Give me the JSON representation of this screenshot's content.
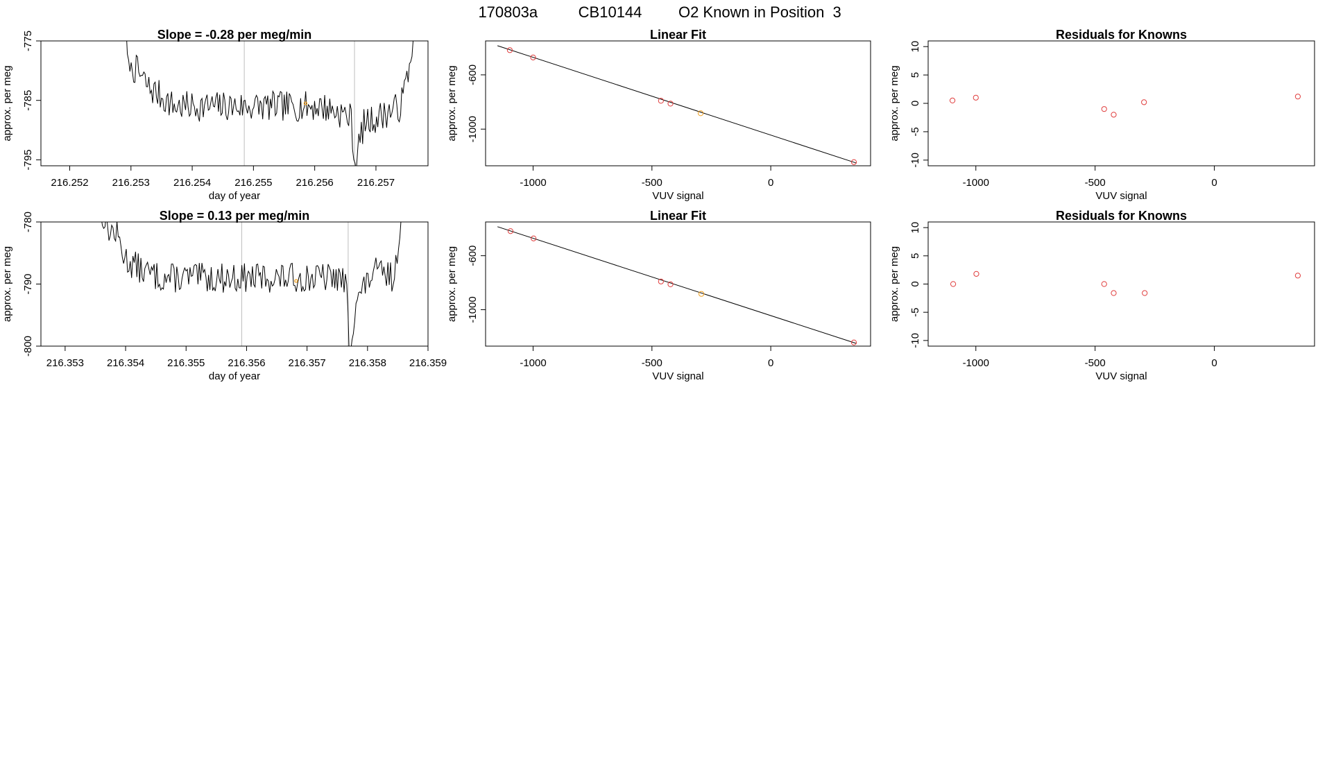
{
  "header": {
    "run_id": "170803a",
    "cylinder": "CB10144",
    "description": "O2 Known in Position  3"
  },
  "colors": {
    "points": "#e03c3c",
    "highlight": "#f0a020",
    "series": "#000000",
    "marker_lines": "#bdbdbd"
  },
  "chart_data": [
    {
      "id": "ts1",
      "type": "line",
      "title": "Slope =  -0.28  per meg/min",
      "xlabel": "day of year",
      "ylabel": "approx. per meg",
      "xlim": [
        216.25153,
        216.25785
      ],
      "ylim": [
        -796,
        -775
      ],
      "xticks": [
        216.252,
        216.253,
        216.254,
        216.255,
        216.256,
        216.257
      ],
      "xtick_labels": [
        "216.252",
        "216.253",
        "216.254",
        "216.255",
        "216.256",
        "216.257"
      ],
      "yticks": [
        -775,
        -785,
        -795
      ],
      "ytick_labels": [
        "-775",
        "-785",
        "-795"
      ],
      "vlines": [
        216.25485,
        216.25665
      ],
      "highlight": {
        "x": 216.25585,
        "y": -785.5
      },
      "series": {
        "start": 216.2529,
        "end": 216.25765,
        "baseline": -786,
        "noise": 1.6,
        "seed": 7,
        "anchors": [
          [
            216.2529,
            -770
          ],
          [
            216.25295,
            -779
          ],
          [
            216.2531,
            -780
          ],
          [
            216.2533,
            -783
          ],
          [
            216.25345,
            -784
          ],
          [
            216.2537,
            -786
          ],
          [
            216.255,
            -786
          ],
          [
            216.2561,
            -786
          ],
          [
            216.2564,
            -787
          ],
          [
            216.2566,
            -788
          ],
          [
            216.25665,
            -796
          ],
          [
            216.2568,
            -789
          ],
          [
            216.2574,
            -786
          ],
          [
            216.25745,
            -784
          ],
          [
            216.25755,
            -779
          ],
          [
            216.25765,
            -773
          ]
        ]
      }
    },
    {
      "id": "fit1",
      "type": "scatter",
      "title": "Linear Fit",
      "xlabel": "VUV signal",
      "ylabel": "approx. per meg",
      "xlim": [
        -1200,
        420
      ],
      "ylim": [
        -1270,
        -350
      ],
      "xticks": [
        -1000,
        -500,
        0
      ],
      "xtick_labels": [
        "-1000",
        "-500",
        "0"
      ],
      "yticks": [
        -1000,
        -600
      ],
      "ytick_labels": [
        "-1000",
        "-600"
      ],
      "line": {
        "x1": -1150,
        "y1": -385,
        "x2": 360,
        "y2": -1250
      },
      "points": [
        {
          "x": -1098,
          "y": -418,
          "kind": "known"
        },
        {
          "x": -1000,
          "y": -472,
          "kind": "known"
        },
        {
          "x": -462,
          "y": -791,
          "kind": "known"
        },
        {
          "x": -422,
          "y": -812,
          "kind": "known"
        },
        {
          "x": -295,
          "y": -883,
          "kind": "current"
        },
        {
          "x": 350,
          "y": -1243,
          "kind": "known"
        }
      ]
    },
    {
      "id": "res1",
      "type": "scatter",
      "title": "Residuals for Knowns",
      "xlabel": "VUV signal",
      "ylabel": "approx. per meg",
      "xlim": [
        -1200,
        420
      ],
      "ylim": [
        -11,
        11
      ],
      "xticks": [
        -1000,
        -500,
        0
      ],
      "xtick_labels": [
        "-1000",
        "-500",
        "0"
      ],
      "yticks": [
        -10,
        -5,
        0,
        5,
        10
      ],
      "ytick_labels": [
        "-10",
        "-5",
        "0",
        "5",
        "10"
      ],
      "points": [
        {
          "x": -1098,
          "y": 0.5,
          "kind": "known"
        },
        {
          "x": -1000,
          "y": 1.0,
          "kind": "known"
        },
        {
          "x": -462,
          "y": -1.0,
          "kind": "known"
        },
        {
          "x": -422,
          "y": -2.0,
          "kind": "known"
        },
        {
          "x": -295,
          "y": 0.2,
          "kind": "known"
        },
        {
          "x": 350,
          "y": 1.2,
          "kind": "known"
        }
      ]
    },
    {
      "id": "ts2",
      "type": "line",
      "title": "Slope =  0.13  per meg/min",
      "xlabel": "day of year",
      "ylabel": "approx. per meg",
      "xlim": [
        216.3526,
        216.359
      ],
      "ylim": [
        -800,
        -780
      ],
      "xticks": [
        216.353,
        216.354,
        216.355,
        216.356,
        216.357,
        216.358,
        216.359
      ],
      "xtick_labels": [
        "216.353",
        "216.354",
        "216.355",
        "216.356",
        "216.357",
        "216.358",
        "216.359"
      ],
      "yticks": [
        -780,
        -790,
        -800
      ],
      "ytick_labels": [
        "-780",
        "-790",
        "-800"
      ],
      "vlines": [
        216.35592,
        216.35768
      ],
      "highlight": {
        "x": 216.35682,
        "y": -789.5
      },
      "series": {
        "start": 216.35355,
        "end": 216.3586,
        "baseline": -789,
        "noise": 1.5,
        "seed": 13,
        "anchors": [
          [
            216.35355,
            -779
          ],
          [
            216.3537,
            -781
          ],
          [
            216.35385,
            -782
          ],
          [
            216.354,
            -786
          ],
          [
            216.3543,
            -788
          ],
          [
            216.3546,
            -789
          ],
          [
            216.3575,
            -789
          ],
          [
            216.35765,
            -790
          ],
          [
            216.3577,
            -801
          ],
          [
            216.3578,
            -793
          ],
          [
            216.3581,
            -788
          ],
          [
            216.35845,
            -789
          ],
          [
            216.3585,
            -785
          ],
          [
            216.35855,
            -780
          ],
          [
            216.3586,
            -776
          ]
        ]
      }
    },
    {
      "id": "fit2",
      "type": "scatter",
      "title": "Linear Fit",
      "xlabel": "VUV signal",
      "ylabel": "approx. per meg",
      "xlim": [
        -1200,
        420
      ],
      "ylim": [
        -1270,
        -350
      ],
      "xticks": [
        -1000,
        -500,
        0
      ],
      "xtick_labels": [
        "-1000",
        "-500",
        "0"
      ],
      "yticks": [
        -1000,
        -600
      ],
      "ytick_labels": [
        "-1000",
        "-600"
      ],
      "line": {
        "x1": -1150,
        "y1": -385,
        "x2": 360,
        "y2": -1250
      },
      "points": [
        {
          "x": -1095,
          "y": -418,
          "kind": "known"
        },
        {
          "x": -998,
          "y": -472,
          "kind": "known"
        },
        {
          "x": -462,
          "y": -791,
          "kind": "known"
        },
        {
          "x": -422,
          "y": -812,
          "kind": "known"
        },
        {
          "x": -292,
          "y": -883,
          "kind": "current"
        },
        {
          "x": 350,
          "y": -1243,
          "kind": "known"
        }
      ]
    },
    {
      "id": "res2",
      "type": "scatter",
      "title": "Residuals for Knowns",
      "xlabel": "VUV signal",
      "ylabel": "approx. per meg",
      "xlim": [
        -1200,
        420
      ],
      "ylim": [
        -11,
        11
      ],
      "xticks": [
        -1000,
        -500,
        0
      ],
      "xtick_labels": [
        "-1000",
        "-500",
        "0"
      ],
      "yticks": [
        -10,
        -5,
        0,
        5,
        10
      ],
      "ytick_labels": [
        "-10",
        "-5",
        "0",
        "5",
        "10"
      ],
      "points": [
        {
          "x": -1095,
          "y": 0.0,
          "kind": "known"
        },
        {
          "x": -998,
          "y": 1.8,
          "kind": "known"
        },
        {
          "x": -462,
          "y": 0.0,
          "kind": "known"
        },
        {
          "x": -422,
          "y": -1.6,
          "kind": "known"
        },
        {
          "x": -292,
          "y": -1.6,
          "kind": "known"
        },
        {
          "x": 350,
          "y": 1.5,
          "kind": "known"
        }
      ]
    }
  ]
}
